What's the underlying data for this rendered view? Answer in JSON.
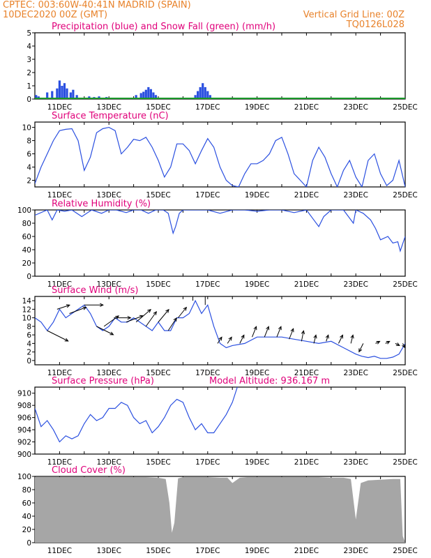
{
  "header": {
    "line1": "CPTEC:   003:60W-40:41N   MADRID (SPAIN)",
    "line2": "10DEC2020 00Z (GMT)",
    "grid_note": "Vertical Grid Line: 00Z",
    "code": "TQ0126L028"
  },
  "colors": {
    "header": "#e8822a",
    "title": "#e0007a",
    "series_blue": "#2a4fe0",
    "snow_green": "#1a9a2a",
    "cloud_gray": "#a6a6a6"
  },
  "chart_data": [
    {
      "type": "bar",
      "title": "Precipitation (blue) and Snow Fall (green) (mm/h)",
      "x_ticks": [
        "11DEC",
        "13DEC",
        "15DEC",
        "17DEC",
        "19DEC",
        "21DEC",
        "23DEC",
        "25DEC"
      ],
      "xlim_days": [
        10,
        25
      ],
      "ylim": [
        0,
        5
      ],
      "yticks": [
        "0",
        "1",
        "2",
        "3",
        "4",
        "5"
      ],
      "series": [
        {
          "name": "Precipitation",
          "day": [
            10.05,
            10.15,
            10.3,
            10.5,
            10.7,
            10.9,
            11.0,
            11.1,
            11.2,
            11.3,
            11.45,
            11.55,
            11.7,
            12.2,
            12.4,
            12.6,
            12.9,
            13.1,
            13.5,
            13.7,
            13.9,
            14.1,
            14.3,
            14.4,
            14.5,
            14.6,
            14.7,
            14.8,
            14.9,
            15.2,
            15.5,
            16.4,
            16.5,
            16.6,
            16.7,
            16.8,
            16.9,
            17.0,
            17.1,
            17.3,
            17.6,
            18.0,
            19.0,
            20.0,
            21.0,
            22.0,
            24.0
          ],
          "value": [
            0.3,
            0.2,
            0.1,
            0.5,
            0.6,
            0.8,
            1.4,
            1.0,
            1.2,
            0.8,
            0.5,
            0.7,
            0.3,
            0.2,
            0.15,
            0.2,
            0.15,
            0.1,
            0.05,
            0.1,
            0.1,
            0.3,
            0.45,
            0.55,
            0.7,
            0.9,
            0.75,
            0.5,
            0.3,
            0.1,
            0.05,
            0.1,
            0.3,
            0.6,
            0.9,
            1.2,
            0.9,
            0.6,
            0.3,
            0.1,
            0.05,
            0.1,
            0.05,
            0.05,
            0.05,
            0.05,
            0.05
          ]
        },
        {
          "name": "Snow Fall",
          "day": [
            10,
            25
          ],
          "value": [
            0,
            0
          ]
        }
      ]
    },
    {
      "type": "line",
      "title": "Surface Temperature (nC)",
      "x_ticks": [
        "11DEC",
        "13DEC",
        "15DEC",
        "17DEC",
        "19DEC",
        "21DEC",
        "23DEC",
        "25DEC"
      ],
      "ylim": [
        1,
        10.8
      ],
      "yticks": [
        "2",
        "4",
        "6",
        "8",
        "10"
      ],
      "series": [
        {
          "name": "Temperature",
          "day": [
            10.0,
            10.25,
            10.5,
            10.75,
            11.0,
            11.25,
            11.5,
            11.75,
            12.0,
            12.25,
            12.5,
            12.75,
            13.0,
            13.25,
            13.5,
            13.75,
            14.0,
            14.25,
            14.5,
            14.75,
            15.0,
            15.25,
            15.5,
            15.75,
            16.0,
            16.25,
            16.5,
            16.75,
            17.0,
            17.25,
            17.5,
            17.75,
            18.0,
            18.25,
            18.5,
            18.75,
            19.0,
            19.25,
            19.5,
            19.75,
            20.0,
            20.25,
            20.5,
            20.75,
            21.0,
            21.25,
            21.5,
            21.75,
            22.0,
            22.25,
            22.5,
            22.75,
            23.0,
            23.25,
            23.5,
            23.75,
            24.0,
            24.25,
            24.5,
            24.75,
            25.0
          ],
          "value": [
            1.5,
            4.0,
            6.0,
            8.0,
            9.5,
            9.7,
            9.8,
            8.0,
            3.5,
            5.5,
            9.2,
            9.8,
            10.0,
            9.5,
            6.0,
            7.0,
            8.2,
            8.0,
            8.5,
            7.0,
            5.0,
            2.5,
            4.0,
            7.5,
            7.5,
            6.5,
            4.5,
            6.5,
            8.3,
            7.0,
            4.0,
            2.0,
            1.2,
            1.0,
            3.0,
            4.5,
            4.5,
            5.0,
            6.0,
            8.0,
            8.5,
            6.0,
            3.0,
            2.0,
            1.0,
            5.0,
            7.0,
            5.5,
            3.0,
            1.0,
            3.5,
            5.0,
            2.5,
            1.0,
            5.0,
            6.0,
            3.0,
            1.2,
            2.0,
            5.0,
            1.0
          ]
        }
      ]
    },
    {
      "type": "line",
      "title": "Relative Humidity (%)",
      "x_ticks": [
        "11DEC",
        "13DEC",
        "15DEC",
        "17DEC",
        "19DEC",
        "21DEC",
        "23DEC",
        "25DEC"
      ],
      "ylim": [
        0,
        100
      ],
      "yticks": [
        "0",
        "20",
        "40",
        "60",
        "80",
        "100"
      ],
      "series": [
        {
          "name": "Humidity",
          "day": [
            10.0,
            10.5,
            10.7,
            10.9,
            11.2,
            11.5,
            11.9,
            12.3,
            12.7,
            13.0,
            13.3,
            13.7,
            14.0,
            14.3,
            14.6,
            14.9,
            15.2,
            15.4,
            15.5,
            15.6,
            15.7,
            15.85,
            16.0,
            16.5,
            17.0,
            17.5,
            18.0,
            18.5,
            19.0,
            19.5,
            20.0,
            20.5,
            21.0,
            21.3,
            21.5,
            21.7,
            22.0,
            22.5,
            22.7,
            22.9,
            23.0,
            23.3,
            23.6,
            23.8,
            24.0,
            24.3,
            24.5,
            24.7,
            24.8,
            25.0
          ],
          "value": [
            92,
            100,
            85,
            100,
            98,
            100,
            90,
            100,
            95,
            100,
            100,
            96,
            100,
            100,
            95,
            100,
            100,
            95,
            80,
            65,
            75,
            95,
            100,
            100,
            100,
            95,
            100,
            100,
            98,
            100,
            100,
            96,
            100,
            85,
            75,
            90,
            100,
            100,
            90,
            80,
            100,
            95,
            85,
            72,
            55,
            60,
            50,
            52,
            38,
            60
          ]
        }
      ]
    },
    {
      "type": "line",
      "title": "Surface Wind (m/s)",
      "x_ticks": [
        "11DEC",
        "13DEC",
        "15DEC",
        "17DEC",
        "19DEC",
        "21DEC",
        "23DEC",
        "25DEC"
      ],
      "ylim": [
        -1,
        15
      ],
      "yticks": [
        "0",
        "2",
        "4",
        "6",
        "8",
        "10",
        "12",
        "14"
      ],
      "series": [
        {
          "name": "Wind speed",
          "day": [
            10.0,
            10.25,
            10.5,
            10.75,
            11.0,
            11.25,
            11.5,
            11.75,
            12.0,
            12.25,
            12.5,
            12.75,
            13.0,
            13.25,
            13.5,
            13.75,
            14.0,
            14.25,
            14.5,
            14.75,
            15.0,
            15.25,
            15.5,
            15.75,
            16.0,
            16.25,
            16.5,
            16.75,
            17.0,
            17.25,
            17.5,
            17.75,
            18.0,
            18.5,
            19.0,
            19.5,
            20.0,
            20.5,
            21.0,
            21.5,
            22.0,
            22.5,
            23.0,
            23.25,
            23.5,
            23.75,
            24.0,
            24.25,
            24.5,
            24.75,
            25.0
          ],
          "value": [
            10,
            9,
            7,
            9,
            12,
            10,
            11,
            12,
            13,
            11,
            8,
            7,
            8,
            10,
            9,
            9,
            10,
            9,
            8,
            7,
            9,
            7,
            7,
            10,
            10,
            11,
            14,
            11,
            13,
            8,
            4,
            3,
            3.5,
            4,
            5.5,
            5.5,
            5.5,
            5,
            4.5,
            4,
            4.5,
            3,
            1.5,
            1,
            0.7,
            1,
            0.5,
            0.5,
            0.8,
            1.5,
            4
          ]
        }
      ],
      "arrows": [
        {
          "day": 10.5,
          "dx": 1.0,
          "dy": -0.5
        },
        {
          "day": 10.9,
          "dx": 0.6,
          "dy": 0.2
        },
        {
          "day": 11.4,
          "dx": 0.8,
          "dy": 0.3
        },
        {
          "day": 12.0,
          "dx": 0.9,
          "dy": 0.0
        },
        {
          "day": 12.5,
          "dx": 0.8,
          "dy": -0.4
        },
        {
          "day": 12.8,
          "dx": 0.7,
          "dy": 0.5
        },
        {
          "day": 13.2,
          "dx": 0.8,
          "dy": 0.0
        },
        {
          "day": 13.7,
          "dx": 0.8,
          "dy": 0.3
        },
        {
          "day": 14.1,
          "dx": 0.7,
          "dy": 0.6
        },
        {
          "day": 14.5,
          "dx": 0.5,
          "dy": 0.7
        },
        {
          "day": 15.0,
          "dx": 0.5,
          "dy": 0.6
        },
        {
          "day": 15.4,
          "dx": 0.4,
          "dy": 0.6
        },
        {
          "day": 15.8,
          "dx": 0.4,
          "dy": 0.5
        },
        {
          "day": 16.4,
          "dx": 0.0,
          "dy": 1.0
        },
        {
          "day": 16.9,
          "dx": 0.0,
          "dy": 0.9
        },
        {
          "day": 17.4,
          "dx": 0.2,
          "dy": 0.3
        },
        {
          "day": 17.8,
          "dx": 0.2,
          "dy": 0.3
        },
        {
          "day": 18.3,
          "dx": 0.2,
          "dy": 0.4
        },
        {
          "day": 18.8,
          "dx": 0.2,
          "dy": 0.5
        },
        {
          "day": 19.3,
          "dx": 0.2,
          "dy": 0.5
        },
        {
          "day": 19.8,
          "dx": 0.2,
          "dy": 0.5
        },
        {
          "day": 20.3,
          "dx": 0.2,
          "dy": 0.5
        },
        {
          "day": 20.8,
          "dx": 0.1,
          "dy": 0.5
        },
        {
          "day": 21.3,
          "dx": 0.1,
          "dy": 0.4
        },
        {
          "day": 21.8,
          "dx": 0.1,
          "dy": 0.3
        },
        {
          "day": 22.3,
          "dx": 0.2,
          "dy": 0.4
        },
        {
          "day": 22.8,
          "dx": 0.1,
          "dy": 0.4
        },
        {
          "day": 23.3,
          "dx": -0.2,
          "dy": -0.4
        },
        {
          "day": 23.8,
          "dx": 0.2,
          "dy": 0.1
        },
        {
          "day": 24.2,
          "dx": 0.2,
          "dy": 0.1
        },
        {
          "day": 24.6,
          "dx": 0.2,
          "dy": -0.1
        },
        {
          "day": 24.9,
          "dx": 0.1,
          "dy": -0.2
        }
      ]
    },
    {
      "type": "line",
      "title": "Surface Pressure (hPa)",
      "annotation": "Model Altitude: 936.167 m",
      "x_ticks": [
        "11DEC",
        "13DEC",
        "15DEC",
        "17DEC",
        "19DEC",
        "21DEC",
        "23DEC",
        "25DEC"
      ],
      "ylim": [
        900,
        911
      ],
      "yticks": [
        "900",
        "902",
        "904",
        "906",
        "908",
        "910"
      ],
      "series": [
        {
          "name": "Pressure",
          "day": [
            10.0,
            10.25,
            10.5,
            10.75,
            11.0,
            11.25,
            11.5,
            11.75,
            12.0,
            12.25,
            12.5,
            12.75,
            13.0,
            13.25,
            13.5,
            13.75,
            14.0,
            14.25,
            14.5,
            14.75,
            15.0,
            15.25,
            15.5,
            15.75,
            16.0,
            16.25,
            16.5,
            16.75,
            17.0,
            17.25,
            17.5,
            17.75,
            18.0,
            18.2
          ],
          "value": [
            907.5,
            904.5,
            905.5,
            904.0,
            902.0,
            903.0,
            902.5,
            903.0,
            905.0,
            906.5,
            905.5,
            906.0,
            907.5,
            907.5,
            908.5,
            908.0,
            906.0,
            905.0,
            905.5,
            903.5,
            904.5,
            906.0,
            908.0,
            909.0,
            908.5,
            906.0,
            904.0,
            905.0,
            903.5,
            903.5,
            905.0,
            906.5,
            908.5,
            911.0
          ]
        }
      ]
    },
    {
      "type": "area",
      "title": "Cloud Cover (%)",
      "x_ticks": [
        "11DEC",
        "13DEC",
        "15DEC",
        "17DEC",
        "19DEC",
        "21DEC",
        "23DEC",
        "25DEC"
      ],
      "ylim": [
        0,
        100
      ],
      "yticks": [
        "0",
        "20",
        "40",
        "60",
        "80",
        "100"
      ],
      "series": [
        {
          "name": "Cloud cover",
          "day": [
            10.0,
            10.5,
            11.0,
            11.5,
            12.0,
            12.5,
            13.0,
            13.5,
            14.0,
            14.5,
            15.0,
            15.3,
            15.45,
            15.55,
            15.65,
            15.8,
            16.0,
            16.5,
            17.0,
            17.5,
            17.8,
            18.0,
            18.3,
            18.6,
            19.0,
            19.5,
            20.0,
            20.5,
            21.0,
            21.5,
            22.0,
            22.5,
            22.8,
            23.0,
            23.2,
            23.5,
            24.0,
            24.5,
            24.8,
            24.9,
            25.0
          ],
          "value": [
            99,
            99,
            99,
            99,
            99,
            99,
            99,
            99,
            99,
            99,
            98,
            96,
            60,
            15,
            30,
            97,
            99,
            99,
            99,
            98,
            98,
            90,
            98,
            99,
            99,
            99,
            99,
            99,
            99,
            99,
            98,
            98,
            96,
            35,
            90,
            94,
            95,
            96,
            96,
            10,
            0
          ]
        }
      ]
    }
  ]
}
